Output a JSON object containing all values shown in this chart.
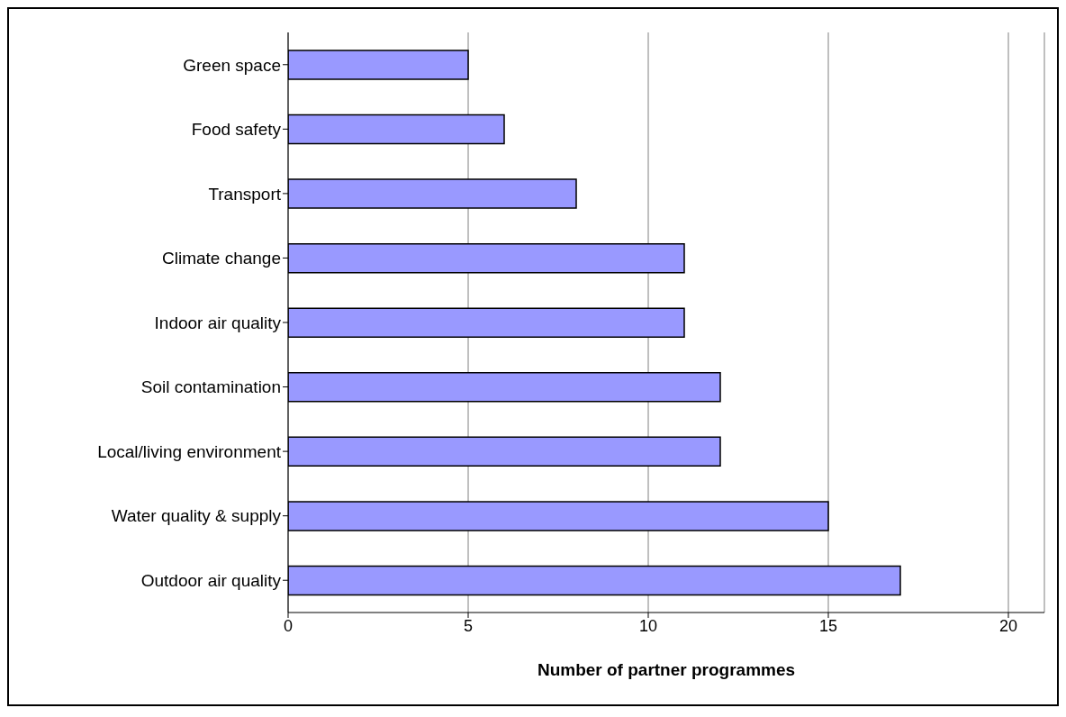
{
  "chart_data": {
    "type": "bar",
    "orientation": "horizontal",
    "xlabel": "Number of partner programmes",
    "categories": [
      "Green space",
      "Food safety",
      "Transport",
      "Climate change",
      "Indoor air quality",
      "Soil contamination",
      "Local/living environment",
      "Water quality & supply",
      "Outdoor air quality"
    ],
    "values": [
      5,
      6,
      8,
      11,
      11,
      12,
      12,
      15,
      17
    ],
    "color": "#9999ff",
    "xlim": [
      0,
      21
    ],
    "xticks": [
      0,
      5,
      10,
      15,
      20
    ],
    "grid": "x"
  }
}
